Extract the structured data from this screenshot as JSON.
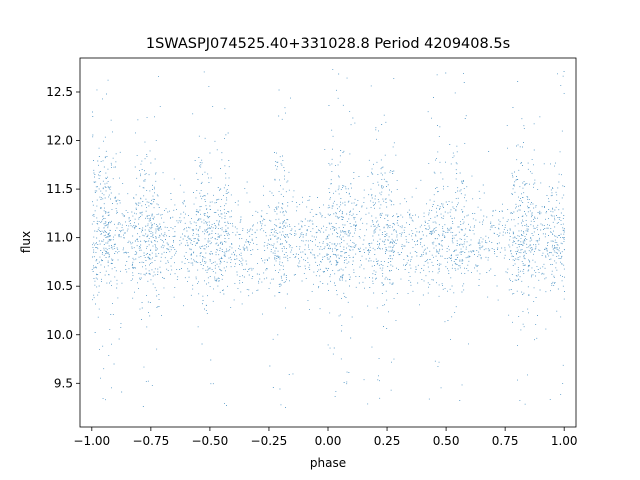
{
  "chart_data": {
    "type": "scatter",
    "title": "1SWASPJ074525.40+331028.8 Period 4209408.5s",
    "xlabel": "phase",
    "ylabel": "flux",
    "xlim": [
      -1.05,
      1.05
    ],
    "ylim": [
      9.05,
      12.85
    ],
    "xticks": [
      -1.0,
      -0.75,
      -0.5,
      -0.25,
      0.0,
      0.25,
      0.5,
      0.75,
      1.0
    ],
    "xtick_labels": [
      "−1.00",
      "−0.75",
      "−0.50",
      "−0.25",
      "0.00",
      "0.25",
      "0.50",
      "0.75",
      "1.00"
    ],
    "yticks": [
      9.5,
      10.0,
      10.5,
      11.0,
      11.5,
      12.0,
      12.5
    ],
    "ytick_labels": [
      "9.5",
      "10.0",
      "10.5",
      "11.0",
      "11.5",
      "12.0",
      "12.5"
    ],
    "grid": false,
    "marker_color": "#1f77b4",
    "phase_range": [
      -1.0,
      1.0
    ],
    "baseline_flux": 10.95,
    "flux_spread": 0.35,
    "bright_band_flux": 11.45,
    "outlier_flux_range": [
      9.25,
      12.75
    ],
    "dense_columns_phase": [
      -0.97,
      -0.92,
      -0.8,
      -0.75,
      -0.53,
      -0.45,
      -0.2,
      0.03,
      0.08,
      0.2,
      0.25,
      0.47,
      0.55,
      0.8,
      0.85,
      0.97
    ],
    "point_count": 22000
  }
}
